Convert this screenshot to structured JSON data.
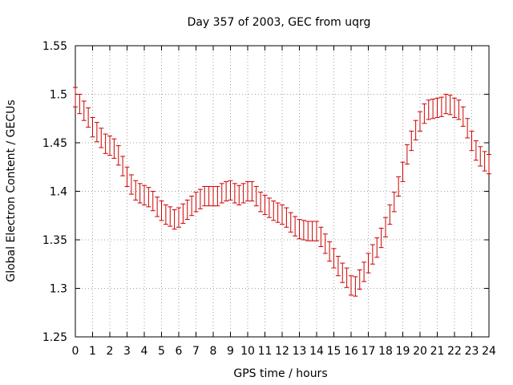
{
  "chart_data": {
    "type": "line",
    "title": "Day 357 of 2003, GEC from uqrg",
    "xlabel": "GPS time / hours",
    "ylabel": "Global Electron Content / GECUs",
    "xlim": [
      0,
      24
    ],
    "ylim": [
      1.25,
      1.55
    ],
    "grid": true,
    "x_ticks": [
      "0",
      "1",
      "2",
      "3",
      "4",
      "5",
      "6",
      "7",
      "8",
      "9",
      "10",
      "11",
      "12",
      "13",
      "14",
      "15",
      "16",
      "17",
      "18",
      "19",
      "20",
      "21",
      "22",
      "23",
      "24"
    ],
    "y_ticks": [
      "1.25",
      "1.3",
      "1.35",
      "1.4",
      "1.45",
      "1.5",
      "1.55"
    ],
    "series_color": "#cc0000",
    "series": [
      {
        "error": 0.01,
        "x": [
          0,
          0.25,
          0.5,
          0.75,
          1,
          1.25,
          1.5,
          1.75,
          2,
          2.25,
          2.5,
          2.75,
          3,
          3.25,
          3.5,
          3.75,
          4,
          4.25,
          4.5,
          4.75,
          5,
          5.25,
          5.5,
          5.75,
          6,
          6.25,
          6.5,
          6.75,
          7,
          7.25,
          7.5,
          7.75,
          8,
          8.25,
          8.5,
          8.75,
          9,
          9.25,
          9.5,
          9.75,
          10,
          10.25,
          10.5,
          10.75,
          11,
          11.25,
          11.5,
          11.75,
          12,
          12.25,
          12.5,
          12.75,
          13,
          13.25,
          13.5,
          13.75,
          14,
          14.25,
          14.5,
          14.75,
          15,
          15.25,
          15.5,
          15.75,
          16,
          16.25,
          16.5,
          16.75,
          17,
          17.25,
          17.5,
          17.75,
          18,
          18.25,
          18.5,
          18.75,
          19,
          19.25,
          19.5,
          19.75,
          20,
          20.25,
          20.5,
          20.75,
          21,
          21.25,
          21.5,
          21.75,
          22,
          22.25,
          22.5,
          22.75,
          23,
          23.25,
          23.5,
          23.75,
          24
        ],
        "values": [
          1.497,
          1.49,
          1.483,
          1.476,
          1.466,
          1.461,
          1.455,
          1.449,
          1.447,
          1.444,
          1.437,
          1.426,
          1.415,
          1.407,
          1.401,
          1.398,
          1.396,
          1.394,
          1.39,
          1.384,
          1.38,
          1.376,
          1.374,
          1.371,
          1.373,
          1.377,
          1.381,
          1.385,
          1.389,
          1.392,
          1.395,
          1.395,
          1.395,
          1.395,
          1.398,
          1.4,
          1.401,
          1.398,
          1.396,
          1.398,
          1.4,
          1.4,
          1.395,
          1.389,
          1.386,
          1.383,
          1.38,
          1.378,
          1.376,
          1.373,
          1.368,
          1.364,
          1.361,
          1.36,
          1.359,
          1.359,
          1.359,
          1.353,
          1.346,
          1.338,
          1.331,
          1.323,
          1.316,
          1.311,
          1.303,
          1.302,
          1.309,
          1.317,
          1.326,
          1.335,
          1.342,
          1.352,
          1.363,
          1.376,
          1.389,
          1.405,
          1.42,
          1.438,
          1.452,
          1.463,
          1.472,
          1.48,
          1.484,
          1.485,
          1.486,
          1.487,
          1.49,
          1.489,
          1.486,
          1.484,
          1.477,
          1.465,
          1.452,
          1.442,
          1.436,
          1.431,
          1.428
        ]
      }
    ]
  }
}
